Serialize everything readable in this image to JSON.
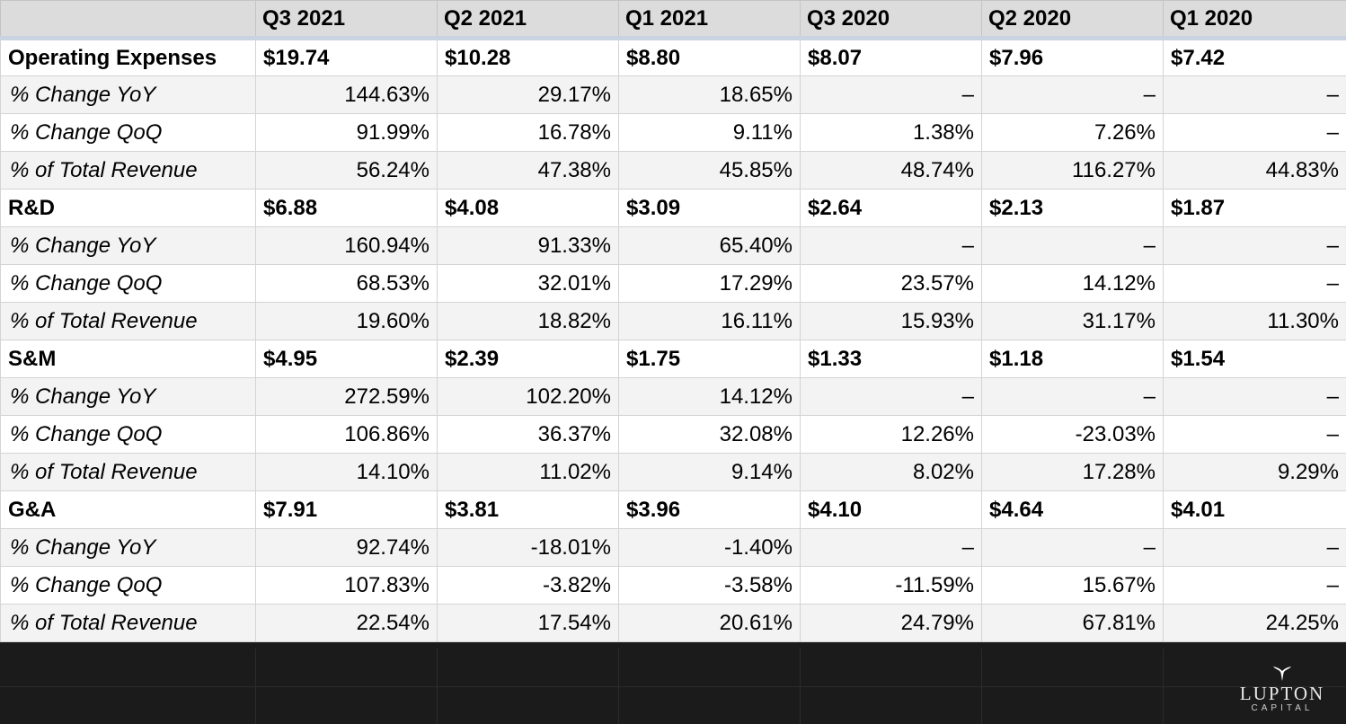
{
  "table": {
    "corner": "",
    "headers": [
      "Q3 2021",
      "Q2 2021",
      "Q1 2021",
      "Q3 2020",
      "Q2 2020",
      "Q1 2020"
    ],
    "rows": [
      {
        "label": "Operating Expenses",
        "type": "main",
        "values": [
          "$19.74",
          "$10.28",
          "$8.80",
          "$8.07",
          "$7.96",
          "$7.42"
        ]
      },
      {
        "label": "% Change YoY",
        "type": "sub",
        "values": [
          "144.63%",
          "29.17%",
          "18.65%",
          "–",
          "–",
          "–"
        ]
      },
      {
        "label": "% Change QoQ",
        "type": "sub",
        "values": [
          "91.99%",
          "16.78%",
          "9.11%",
          "1.38%",
          "7.26%",
          "–"
        ]
      },
      {
        "label": "% of Total Revenue",
        "type": "sub",
        "values": [
          "56.24%",
          "47.38%",
          "45.85%",
          "48.74%",
          "116.27%",
          "44.83%"
        ]
      },
      {
        "label": "R&D",
        "type": "main",
        "values": [
          "$6.88",
          "$4.08",
          "$3.09",
          "$2.64",
          "$2.13",
          "$1.87"
        ]
      },
      {
        "label": "% Change YoY",
        "type": "sub",
        "values": [
          "160.94%",
          "91.33%",
          "65.40%",
          "–",
          "–",
          "–"
        ]
      },
      {
        "label": "% Change QoQ",
        "type": "sub",
        "values": [
          "68.53%",
          "32.01%",
          "17.29%",
          "23.57%",
          "14.12%",
          "–"
        ]
      },
      {
        "label": "% of Total Revenue",
        "type": "sub",
        "values": [
          "19.60%",
          "18.82%",
          "16.11%",
          "15.93%",
          "31.17%",
          "11.30%"
        ]
      },
      {
        "label": "S&M",
        "type": "main",
        "values": [
          "$4.95",
          "$2.39",
          "$1.75",
          "$1.33",
          "$1.18",
          "$1.54"
        ]
      },
      {
        "label": "% Change YoY",
        "type": "sub",
        "values": [
          "272.59%",
          "102.20%",
          "14.12%",
          "–",
          "–",
          "–"
        ]
      },
      {
        "label": "% Change QoQ",
        "type": "sub",
        "values": [
          "106.86%",
          "36.37%",
          "32.08%",
          "12.26%",
          "-23.03%",
          "–"
        ]
      },
      {
        "label": "% of Total Revenue",
        "type": "sub",
        "values": [
          "14.10%",
          "11.02%",
          "9.14%",
          "8.02%",
          "17.28%",
          "9.29%"
        ]
      },
      {
        "label": "G&A",
        "type": "main",
        "values": [
          "$7.91",
          "$3.81",
          "$3.96",
          "$4.10",
          "$4.64",
          "$4.01"
        ]
      },
      {
        "label": "% Change YoY",
        "type": "sub",
        "values": [
          "92.74%",
          "-18.01%",
          "-1.40%",
          "–",
          "–",
          "–"
        ]
      },
      {
        "label": "% Change QoQ",
        "type": "sub",
        "values": [
          "107.83%",
          "-3.82%",
          "-3.58%",
          "-11.59%",
          "15.67%",
          "–"
        ]
      },
      {
        "label": "% of Total Revenue",
        "type": "sub",
        "values": [
          "22.54%",
          "17.54%",
          "20.61%",
          "24.79%",
          "67.81%",
          "24.25%"
        ]
      }
    ]
  },
  "logo": {
    "name": "LUPTON",
    "sub": "CAPITAL",
    "icon": "whale-tail-icon"
  },
  "colors": {
    "header_bg": "#dcdcdc",
    "alt_row_bg": "#f3f3f3",
    "footer_bg": "#1b1b1b"
  }
}
